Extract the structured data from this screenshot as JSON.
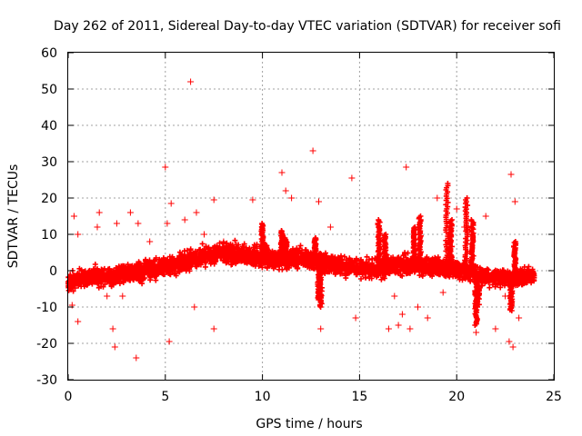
{
  "chart_data": {
    "type": "scatter",
    "title": "Day 262 of 2011, Sidereal Day-to-day VTEC variation (SDTVAR) for receiver sofi",
    "xlabel": "GPS time / hours",
    "ylabel": "SDTVAR / TECUs",
    "xlim": [
      0,
      25
    ],
    "ylim": [
      -30,
      60
    ],
    "xticks": [
      0,
      5,
      10,
      15,
      20,
      25
    ],
    "yticks": [
      -30,
      -20,
      -10,
      0,
      10,
      20,
      30,
      40,
      50,
      60
    ],
    "grid": true,
    "marker": "+",
    "series_color": "#ff0000",
    "band_trend": [
      [
        0.0,
        -3.0
      ],
      [
        1.0,
        -2.0
      ],
      [
        2.0,
        -1.5
      ],
      [
        3.0,
        -1.0
      ],
      [
        4.0,
        0.0
      ],
      [
        5.0,
        1.0
      ],
      [
        6.0,
        2.5
      ],
      [
        7.0,
        4.0
      ],
      [
        8.0,
        5.0
      ],
      [
        9.0,
        4.5
      ],
      [
        10.0,
        3.5
      ],
      [
        11.0,
        3.0
      ],
      [
        12.0,
        3.5
      ],
      [
        13.0,
        2.5
      ],
      [
        14.0,
        1.5
      ],
      [
        15.0,
        0.5
      ],
      [
        16.0,
        0.5
      ],
      [
        17.0,
        1.5
      ],
      [
        18.0,
        1.5
      ],
      [
        19.0,
        1.0
      ],
      [
        20.0,
        0.5
      ],
      [
        21.0,
        -1.0
      ],
      [
        22.0,
        -2.0
      ],
      [
        23.0,
        -2.0
      ],
      [
        24.0,
        -1.5
      ]
    ],
    "spikes": [
      [
        10.0,
        13.0
      ],
      [
        10.2,
        7.0
      ],
      [
        11.0,
        11.0
      ],
      [
        11.2,
        9.0
      ],
      [
        12.7,
        9.0
      ],
      [
        12.9,
        -8.0
      ],
      [
        13.0,
        -10.0
      ],
      [
        16.0,
        14.0
      ],
      [
        16.3,
        10.0
      ],
      [
        17.8,
        12.0
      ],
      [
        18.1,
        15.0
      ],
      [
        19.5,
        24.0
      ],
      [
        19.7,
        14.0
      ],
      [
        20.5,
        20.0
      ],
      [
        20.8,
        14.0
      ],
      [
        21.0,
        -15.0
      ],
      [
        21.1,
        -10.0
      ],
      [
        22.8,
        -11.0
      ],
      [
        23.0,
        8.0
      ]
    ],
    "outliers": [
      [
        0.2,
        -9.5
      ],
      [
        0.3,
        15.0
      ],
      [
        0.5,
        -14.0
      ],
      [
        0.5,
        10.0
      ],
      [
        1.5,
        12.0
      ],
      [
        1.6,
        16.0
      ],
      [
        2.0,
        -7.0
      ],
      [
        2.3,
        -16.0
      ],
      [
        2.4,
        -21.0
      ],
      [
        2.5,
        13.0
      ],
      [
        2.8,
        -7.0
      ],
      [
        3.2,
        16.0
      ],
      [
        3.5,
        -24.0
      ],
      [
        3.6,
        13.0
      ],
      [
        4.2,
        8.0
      ],
      [
        5.0,
        28.5
      ],
      [
        5.1,
        13.0
      ],
      [
        5.2,
        -19.5
      ],
      [
        5.3,
        18.5
      ],
      [
        6.0,
        14.0
      ],
      [
        6.3,
        52.0
      ],
      [
        6.5,
        -10.0
      ],
      [
        6.6,
        16.0
      ],
      [
        7.0,
        10.0
      ],
      [
        7.5,
        19.5
      ],
      [
        7.5,
        -16.0
      ],
      [
        8.0,
        8.0
      ],
      [
        9.5,
        19.5
      ],
      [
        11.0,
        27.0
      ],
      [
        11.2,
        22.0
      ],
      [
        11.5,
        20.0
      ],
      [
        12.6,
        33.0
      ],
      [
        12.9,
        19.0
      ],
      [
        13.0,
        -16.0
      ],
      [
        13.5,
        12.0
      ],
      [
        14.6,
        25.5
      ],
      [
        14.8,
        -13.0
      ],
      [
        16.5,
        -16.0
      ],
      [
        16.8,
        -7.0
      ],
      [
        17.0,
        -15.0
      ],
      [
        17.2,
        -12.0
      ],
      [
        17.4,
        28.5
      ],
      [
        17.6,
        -16.0
      ],
      [
        18.0,
        -10.0
      ],
      [
        18.5,
        -13.0
      ],
      [
        19.0,
        20.0
      ],
      [
        19.3,
        -6.0
      ],
      [
        20.0,
        17.0
      ],
      [
        20.4,
        12.0
      ],
      [
        21.0,
        -17.0
      ],
      [
        21.5,
        15.0
      ],
      [
        22.0,
        -16.0
      ],
      [
        22.5,
        -7.0
      ],
      [
        22.7,
        -19.5
      ],
      [
        22.8,
        26.5
      ],
      [
        22.9,
        -21.0
      ],
      [
        23.0,
        19.0
      ],
      [
        23.2,
        -13.0
      ]
    ]
  }
}
